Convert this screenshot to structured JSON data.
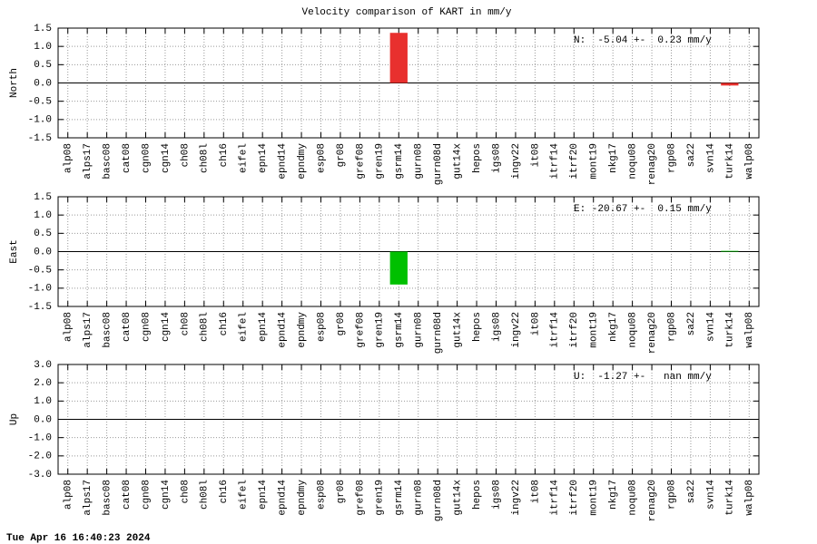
{
  "title": "Velocity comparison of KART in mm/y",
  "footer": "Tue Apr 16 16:40:23 2024",
  "chart_data": [
    {
      "type": "bar",
      "ylabel": "North",
      "annotation": "N:  -5.04 +-  0.23 mm/y",
      "color": "#e8302e",
      "grid": true,
      "categories": [
        "alp08",
        "alps17",
        "basc08",
        "cat08",
        "cgn08",
        "cgn14",
        "ch08",
        "ch08l",
        "ch16",
        "eifel",
        "epn14",
        "epnd14",
        "epndmy",
        "esp08",
        "gr08",
        "gref08",
        "gren19",
        "gsrm14",
        "gurn08",
        "gurn08d",
        "gut14x",
        "hepos",
        "igs08",
        "ingv22",
        "it08",
        "itrf14",
        "itrf20",
        "mont19",
        "nkg17",
        "noqu08",
        "renag20",
        "rgp08",
        "sa22",
        "svn14",
        "turk14",
        "walp08"
      ],
      "values": [
        0,
        0,
        0,
        0,
        0,
        0,
        0,
        0,
        0,
        0,
        0,
        0,
        0,
        0,
        0,
        0,
        0,
        1.37,
        0,
        0,
        0,
        0,
        0,
        0,
        0,
        0,
        0,
        0,
        0,
        0,
        0,
        0,
        0,
        0,
        -0.07,
        0
      ],
      "ylim": [
        -1.5,
        1.5
      ],
      "yticks": [
        -1.5,
        {
          "value": -1,
          "label": "-1.0"
        },
        -0.5,
        {
          "value": 0,
          "label": "0.0"
        },
        0.5,
        {
          "value": 1,
          "label": "1.0"
        },
        1.5
      ]
    },
    {
      "type": "bar",
      "ylabel": "East",
      "annotation": "E: -20.67 +-  0.15 mm/y",
      "color": "#00c000",
      "grid": true,
      "categories": [
        "alp08",
        "alps17",
        "basc08",
        "cat08",
        "cgn08",
        "cgn14",
        "ch08",
        "ch08l",
        "ch16",
        "eifel",
        "epn14",
        "epnd14",
        "epndmy",
        "esp08",
        "gr08",
        "gref08",
        "gren19",
        "gsrm14",
        "gurn08",
        "gurn08d",
        "gut14x",
        "hepos",
        "igs08",
        "ingv22",
        "it08",
        "itrf14",
        "itrf20",
        "mont19",
        "nkg17",
        "noqu08",
        "renag20",
        "rgp08",
        "sa22",
        "svn14",
        "turk14",
        "walp08"
      ],
      "values": [
        0,
        0,
        0,
        0,
        0,
        0,
        0,
        0,
        0,
        0,
        0,
        0,
        0,
        0,
        0,
        0,
        0,
        -0.9,
        0,
        0,
        0,
        0,
        0,
        0,
        0,
        0,
        0,
        0,
        0,
        0,
        0,
        0,
        0,
        0,
        0.02,
        0
      ],
      "ylim": [
        -1.5,
        1.5
      ],
      "yticks": [
        -1.5,
        {
          "value": -1,
          "label": "-1.0"
        },
        -0.5,
        {
          "value": 0,
          "label": "0.0"
        },
        0.5,
        {
          "value": 1,
          "label": "1.0"
        },
        1.5
      ]
    },
    {
      "type": "bar",
      "ylabel": "Up",
      "annotation": "U:  -1.27 +-   nan mm/y",
      "color": "#2040e0",
      "grid": true,
      "categories": [
        "alp08",
        "alps17",
        "basc08",
        "cat08",
        "cgn08",
        "cgn14",
        "ch08",
        "ch08l",
        "ch16",
        "eifel",
        "epn14",
        "epnd14",
        "epndmy",
        "esp08",
        "gr08",
        "gref08",
        "gren19",
        "gsrm14",
        "gurn08",
        "gurn08d",
        "gut14x",
        "hepos",
        "igs08",
        "ingv22",
        "it08",
        "itrf14",
        "itrf20",
        "mont19",
        "nkg17",
        "noqu08",
        "renag20",
        "rgp08",
        "sa22",
        "svn14",
        "turk14",
        "walp08"
      ],
      "values": [
        0,
        0,
        0,
        0,
        0,
        0,
        0,
        0,
        0,
        0,
        0,
        0,
        0,
        0,
        0,
        0,
        0,
        0,
        0,
        0,
        0,
        0,
        0,
        0,
        0,
        0,
        0,
        0,
        0,
        0,
        0,
        0,
        0,
        0,
        0,
        0
      ],
      "ylim": [
        -3,
        3
      ],
      "yticks": [
        {
          "value": -3,
          "label": "-3.0"
        },
        {
          "value": -2,
          "label": "-2.0"
        },
        {
          "value": -1,
          "label": "-1.0"
        },
        {
          "value": 0,
          "label": "0.0"
        },
        {
          "value": 1,
          "label": "1.0"
        },
        {
          "value": 2,
          "label": "2.0"
        },
        {
          "value": 3,
          "label": "3.0"
        }
      ]
    }
  ]
}
